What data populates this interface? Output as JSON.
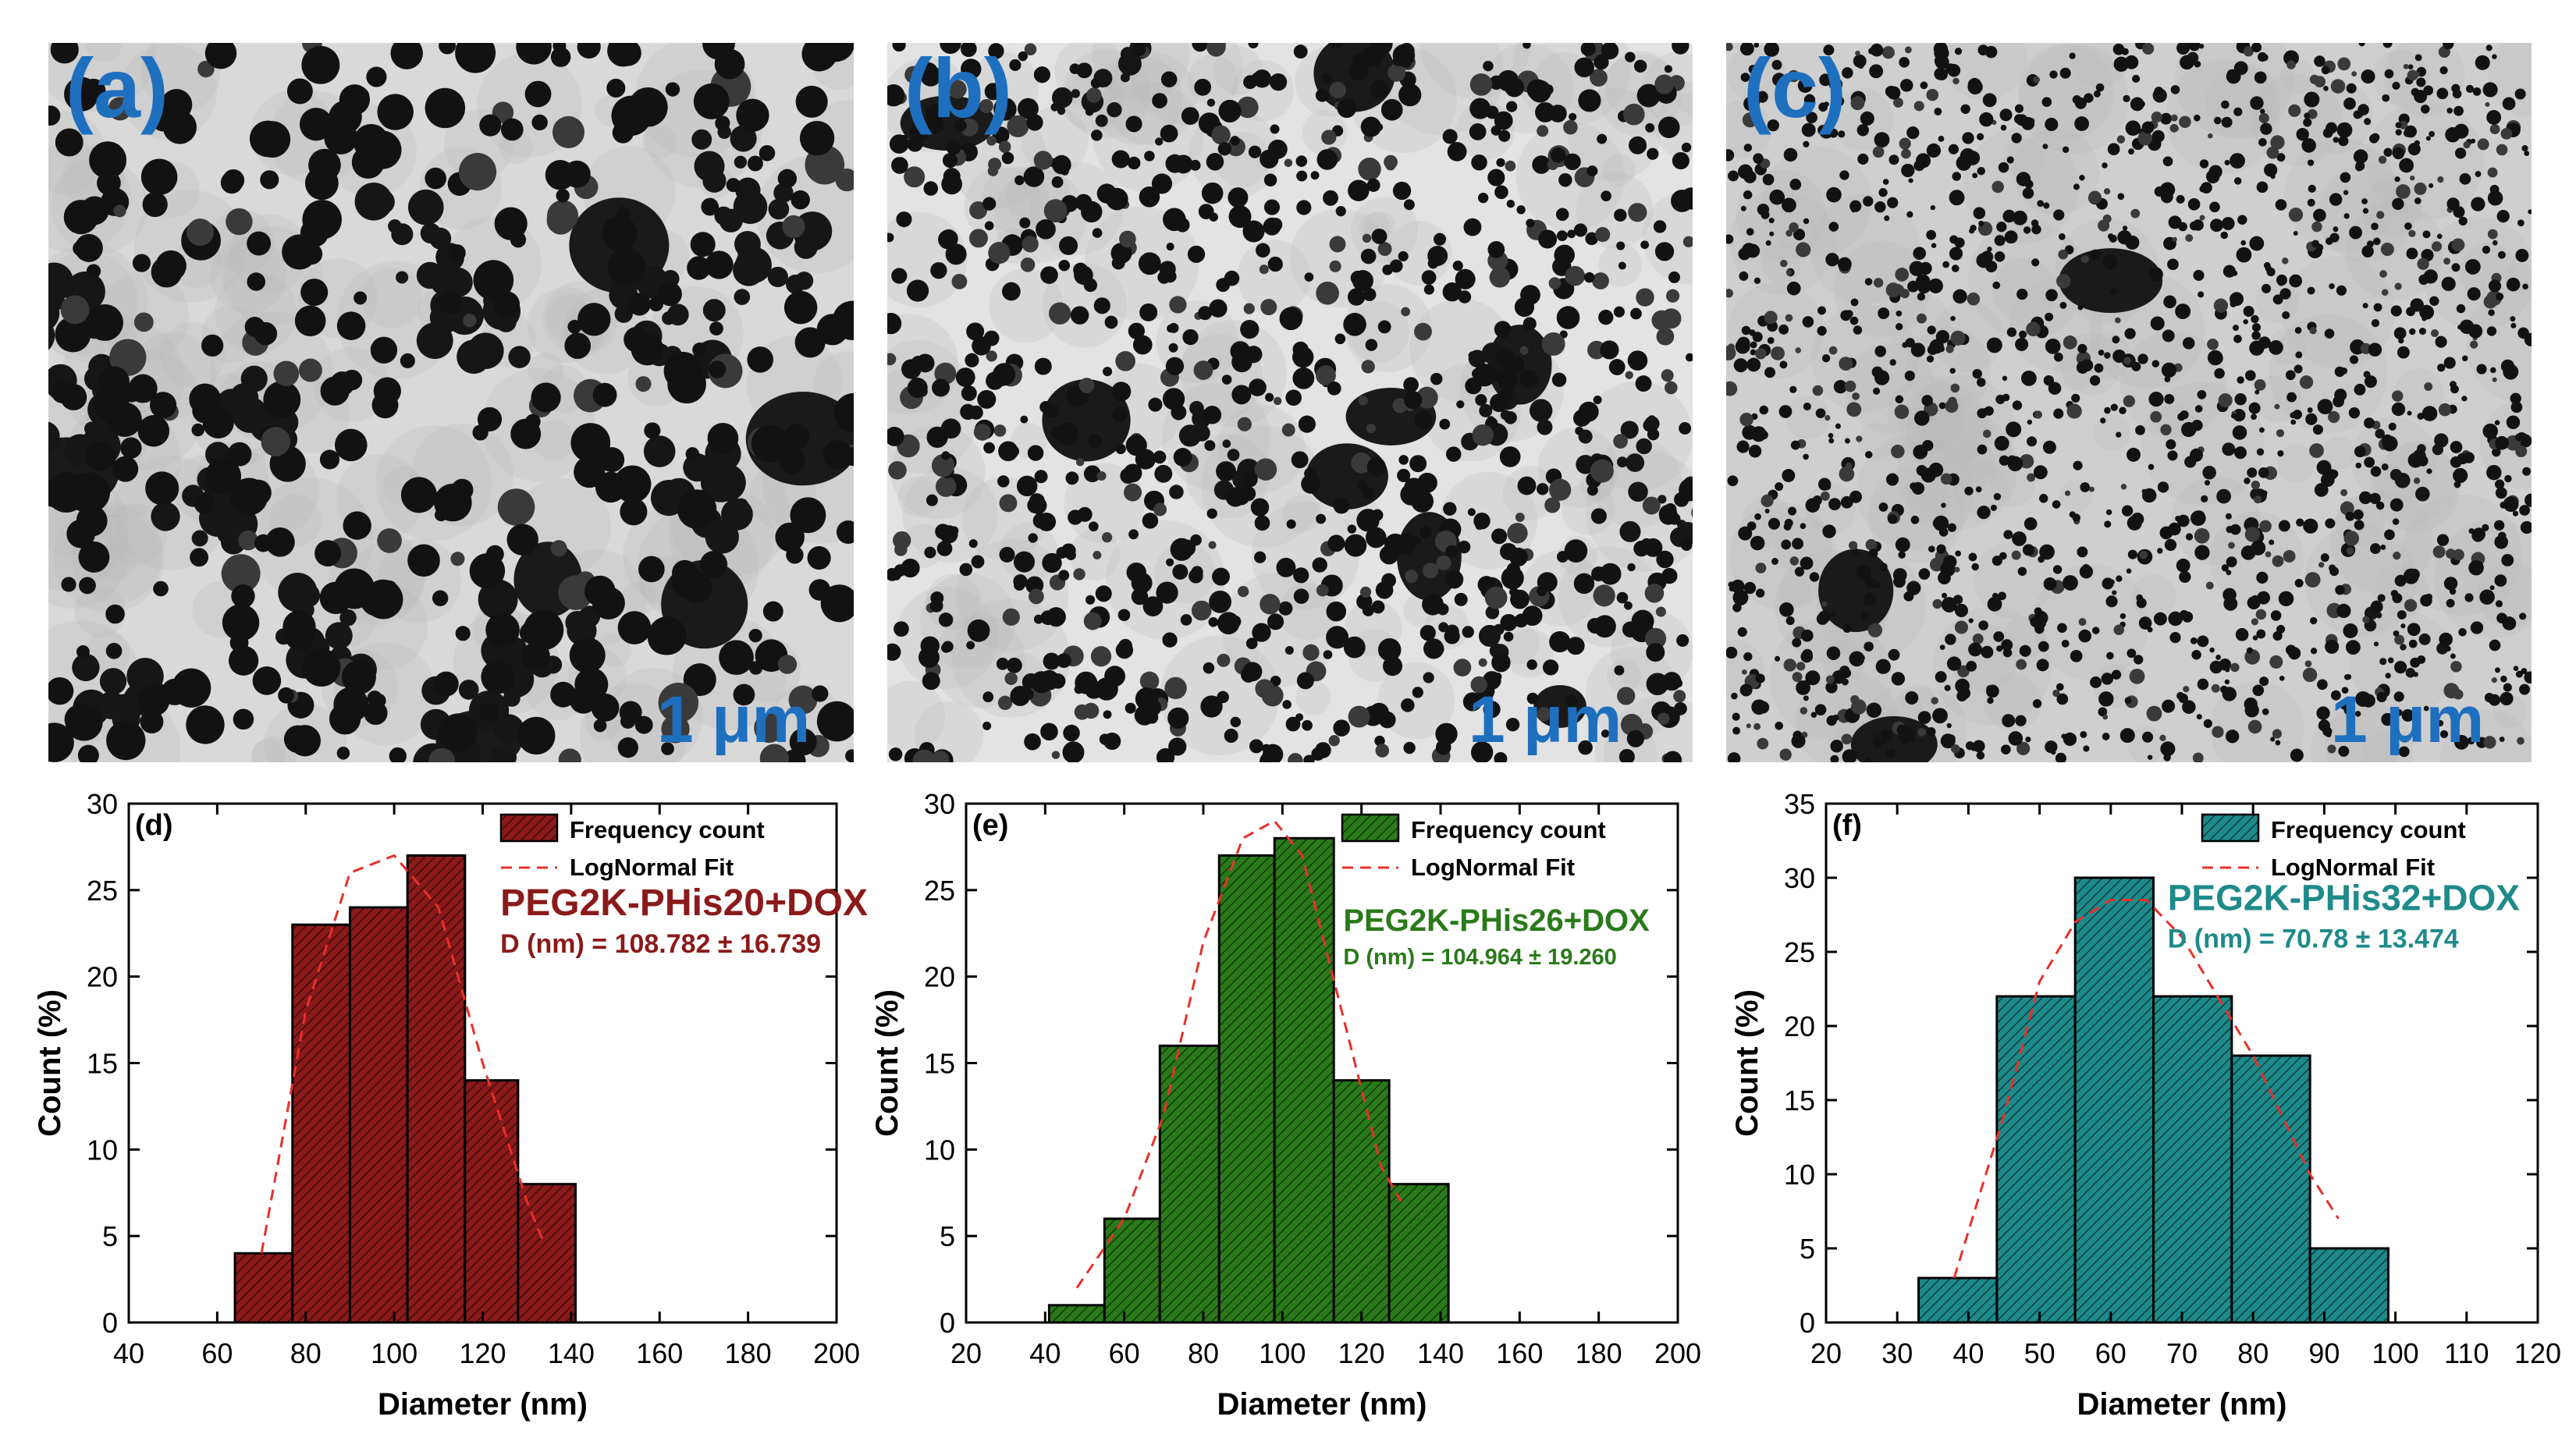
{
  "tem_panels": [
    {
      "label": "(a)",
      "scale": "1 μm",
      "texture": "large-aggregates"
    },
    {
      "label": "(b)",
      "scale": "1 μm",
      "texture": "medium-dots"
    },
    {
      "label": "(c)",
      "scale": "1 μm",
      "texture": "fine-dots"
    }
  ],
  "colors": {
    "panel_d": "#8b1a1a",
    "panel_e": "#2a7a1a",
    "panel_f": "#1e8a8a",
    "fit": "#e8302a",
    "label_blue": "#1f6fbf"
  },
  "chart_data": [
    {
      "type": "bar",
      "panel": "(d)",
      "title": "PEG2K-PHis20+DOX",
      "subtitle": "D (nm) = 108.782 ± 16.739",
      "xlabel": "Diameter (nm)",
      "ylabel": "Count (%)",
      "xlim": [
        40,
        200
      ],
      "ylim": [
        0,
        30
      ],
      "xticks": [
        "40",
        "60",
        "80",
        "100",
        "120",
        "140",
        "160",
        "180",
        "200"
      ],
      "yticks": [
        "0",
        "5",
        "10",
        "15",
        "20",
        "25",
        "30"
      ],
      "bins": [
        [
          64,
          77
        ],
        [
          77,
          90
        ],
        [
          90,
          103
        ],
        [
          103,
          116
        ],
        [
          116,
          128
        ],
        [
          128,
          141
        ]
      ],
      "values": [
        4,
        23,
        24,
        27,
        14,
        8
      ],
      "fit": {
        "x": [
          70,
          80,
          90,
          100,
          110,
          120,
          130,
          134
        ],
        "y": [
          4,
          18,
          26,
          27,
          24,
          15,
          7,
          4.5
        ]
      },
      "legend": [
        "Frequency count",
        "LogNormal Fit"
      ],
      "legend_position": "top-right"
    },
    {
      "type": "bar",
      "panel": "(e)",
      "title": "PEG2K-PHis26+DOX",
      "subtitle": "D (nm) = 104.964 ± 19.260",
      "xlabel": "Diameter (nm)",
      "ylabel": "Count (%)",
      "xlim": [
        20,
        200
      ],
      "ylim": [
        0,
        30
      ],
      "xticks": [
        "20",
        "40",
        "60",
        "80",
        "100",
        "120",
        "140",
        "160",
        "180",
        "200"
      ],
      "yticks": [
        "0",
        "5",
        "10",
        "15",
        "20",
        "25",
        "30"
      ],
      "bins": [
        [
          41,
          55
        ],
        [
          55,
          69
        ],
        [
          69,
          84
        ],
        [
          84,
          98
        ],
        [
          98,
          113
        ],
        [
          113,
          127
        ],
        [
          127,
          142
        ]
      ],
      "values": [
        1,
        6,
        16,
        27,
        28,
        14,
        8
      ],
      "fit": {
        "x": [
          48,
          60,
          70,
          80,
          90,
          98,
          105,
          115,
          125,
          130
        ],
        "y": [
          2,
          6,
          12,
          22,
          28,
          29,
          27,
          18,
          9,
          7
        ]
      },
      "legend": [
        "Frequency count",
        "LogNormal Fit"
      ],
      "legend_position": "top-right"
    },
    {
      "type": "bar",
      "panel": "(f)",
      "title": "PEG2K-PHis32+DOX",
      "subtitle": "D (nm) = 70.78 ± 13.474",
      "xlabel": "Diameter (nm)",
      "ylabel": "Count (%)",
      "xlim": [
        20,
        120
      ],
      "ylim": [
        0,
        35
      ],
      "xticks": [
        "20",
        "30",
        "40",
        "50",
        "60",
        "70",
        "80",
        "90",
        "100",
        "110",
        "120"
      ],
      "yticks": [
        "0",
        "5",
        "10",
        "15",
        "20",
        "25",
        "30",
        "35"
      ],
      "bins": [
        [
          33,
          44
        ],
        [
          44,
          55
        ],
        [
          55,
          66
        ],
        [
          66,
          77
        ],
        [
          77,
          88
        ],
        [
          88,
          99
        ]
      ],
      "values": [
        3,
        22,
        30,
        22,
        18,
        5
      ],
      "fit": {
        "x": [
          38,
          45,
          50,
          55,
          60,
          65,
          70,
          75,
          80,
          85,
          88,
          92
        ],
        "y": [
          3,
          14,
          23,
          27,
          28.5,
          28.5,
          26,
          22,
          18,
          13,
          10,
          7
        ]
      },
      "legend": [
        "Frequency count",
        "LogNormal Fit"
      ],
      "legend_position": "top-right"
    }
  ]
}
